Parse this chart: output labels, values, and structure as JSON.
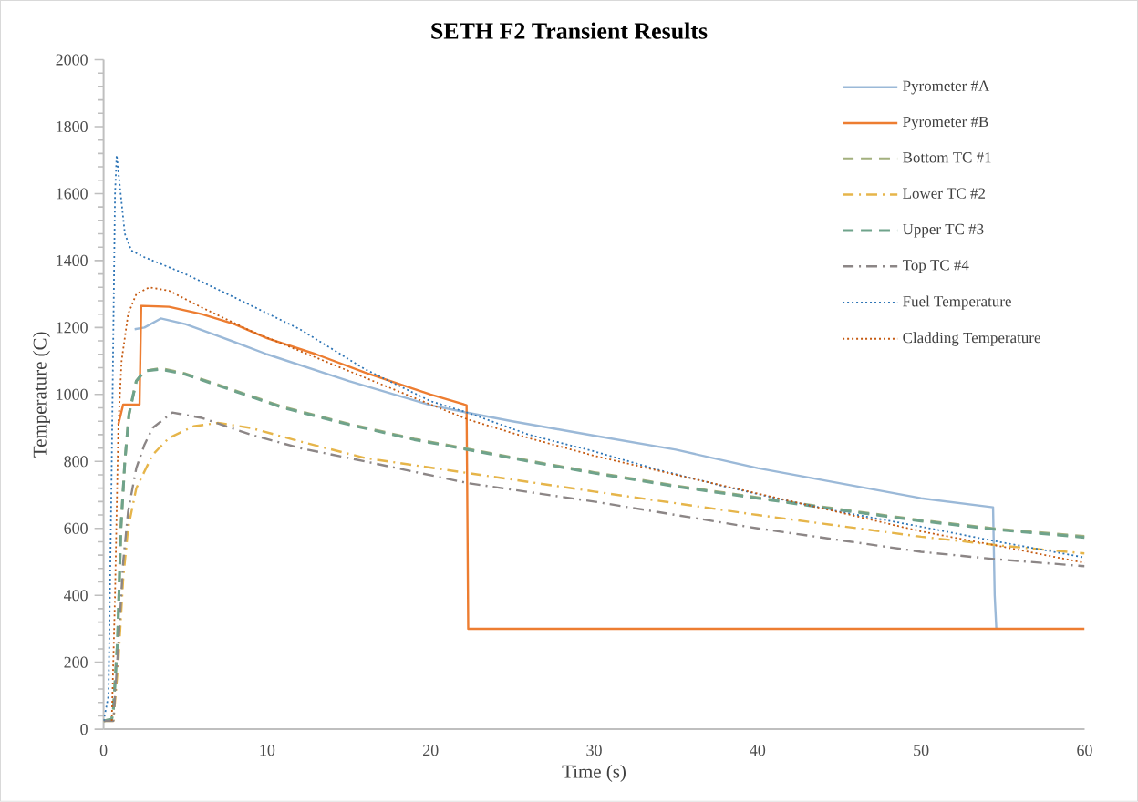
{
  "chart_data": {
    "type": "line",
    "title": "SETH F2 Transient Results",
    "xlabel": "Time (s)",
    "ylabel": "Temperature (C)",
    "xlim": [
      0,
      60
    ],
    "xticks": [
      0,
      10,
      20,
      30,
      40,
      50,
      60
    ],
    "ylim": [
      0,
      2000
    ],
    "yticks": [
      0,
      200,
      400,
      600,
      800,
      1000,
      1200,
      1400,
      1600,
      1800,
      2000
    ],
    "legend": "top right",
    "grid": false,
    "marker": "none",
    "series": [
      {
        "name": "Pyrometer #A",
        "color": "#9bb9d8",
        "line_style": "solid",
        "x": [
          1.9,
          2.5,
          3.5,
          5,
          7,
          10,
          15,
          20,
          22.3,
          25,
          30,
          35,
          40,
          45,
          50,
          54.4,
          54.5,
          54.6
        ],
        "values": [
          1195,
          1200,
          1227,
          1210,
          1175,
          1120,
          1040,
          968,
          945,
          920,
          877,
          835,
          780,
          735,
          690,
          663,
          400,
          300
        ]
      },
      {
        "name": "Pyrometer #B",
        "color": "#ed7d31",
        "line_style": "solid",
        "x": [
          0.9,
          1.2,
          2.2,
          2.3,
          4,
          6,
          8,
          10,
          13,
          16,
          20,
          22.2,
          22.3,
          60
        ],
        "values": [
          910,
          970,
          970,
          1265,
          1262,
          1240,
          1210,
          1168,
          1120,
          1065,
          1000,
          968,
          300,
          300
        ]
      },
      {
        "name": "Bottom TC #1",
        "color": "#a3b07e",
        "line_style": "dashed",
        "x": [
          0,
          0.5,
          0.6,
          0.85,
          1.06,
          1.3,
          1.55,
          2.0,
          2.5,
          3.5,
          5,
          8,
          11,
          15,
          19,
          22.3,
          26,
          30,
          35,
          40,
          45,
          50,
          54.5,
          60
        ],
        "values": [
          25,
          30,
          60,
          260,
          600,
          800,
          940,
          1040,
          1070,
          1078,
          1062,
          1012,
          962,
          912,
          867,
          837,
          802,
          767,
          727,
          692,
          657,
          624,
          599,
          576
        ]
      },
      {
        "name": "Lower TC #2",
        "color": "#e6b54a",
        "line_style": "dashdot",
        "x": [
          0,
          0.6,
          0.9,
          1.2,
          1.5,
          2,
          3,
          4,
          5.5,
          7,
          9,
          12,
          16,
          22.3,
          30,
          40,
          50,
          55,
          60
        ],
        "values": [
          25,
          25,
          200,
          450,
          600,
          720,
          820,
          870,
          905,
          915,
          900,
          860,
          810,
          765,
          710,
          640,
          575,
          548,
          525
        ]
      },
      {
        "name": "Upper TC #3",
        "color": "#6fa38b",
        "line_style": "dashed",
        "x": [
          0,
          0.5,
          0.6,
          0.85,
          1.06,
          1.3,
          1.55,
          2.0,
          2.5,
          3.5,
          5,
          8,
          11,
          15,
          19,
          22.3,
          26,
          30,
          35,
          40,
          45,
          50,
          54.5,
          60
        ],
        "values": [
          25,
          30,
          60,
          260,
          600,
          800,
          940,
          1040,
          1070,
          1075,
          1060,
          1010,
          960,
          910,
          865,
          835,
          800,
          765,
          725,
          690,
          655,
          622,
          597,
          573
        ]
      },
      {
        "name": "Top TC #4",
        "color": "#8c8686",
        "line_style": "dashdot",
        "x": [
          0,
          0.6,
          0.9,
          1.2,
          1.5,
          2,
          2.5,
          3,
          4.2,
          6,
          9,
          12,
          16,
          22.3,
          30,
          40,
          50,
          54.5,
          60
        ],
        "values": [
          25,
          25,
          250,
          500,
          650,
          780,
          850,
          900,
          946,
          930,
          880,
          840,
          800,
          735,
          680,
          600,
          530,
          508,
          487
        ]
      },
      {
        "name": "Fuel Temperature",
        "color": "#2e75b6",
        "line_style": "dotted",
        "x": [
          0,
          0.3,
          0.5,
          0.7,
          0.8,
          1.0,
          1.3,
          1.7,
          2.5,
          5,
          8,
          12,
          16,
          20,
          22.3,
          26,
          30,
          34,
          38,
          41.3,
          45,
          50,
          54.5,
          60
        ],
        "values": [
          25,
          100,
          800,
          1600,
          1715,
          1620,
          1480,
          1430,
          1410,
          1360,
          1290,
          1195,
          1075,
          980,
          945,
          880,
          830,
          774,
          725,
          688,
          650,
          605,
          562,
          513
        ]
      },
      {
        "name": "Cladding Temperature",
        "color": "#c55a11",
        "line_style": "dotted",
        "x": [
          0.5,
          0.7,
          0.9,
          1.1,
          1.5,
          2,
          2.8,
          4,
          6,
          9,
          12,
          16,
          20,
          22.3,
          26,
          30,
          35,
          40,
          45,
          50,
          55,
          60
        ],
        "values": [
          25,
          400,
          900,
          1100,
          1240,
          1300,
          1320,
          1310,
          1260,
          1190,
          1130,
          1050,
          970,
          925,
          870,
          817,
          760,
          704,
          648,
          591,
          545,
          497
        ]
      }
    ]
  }
}
